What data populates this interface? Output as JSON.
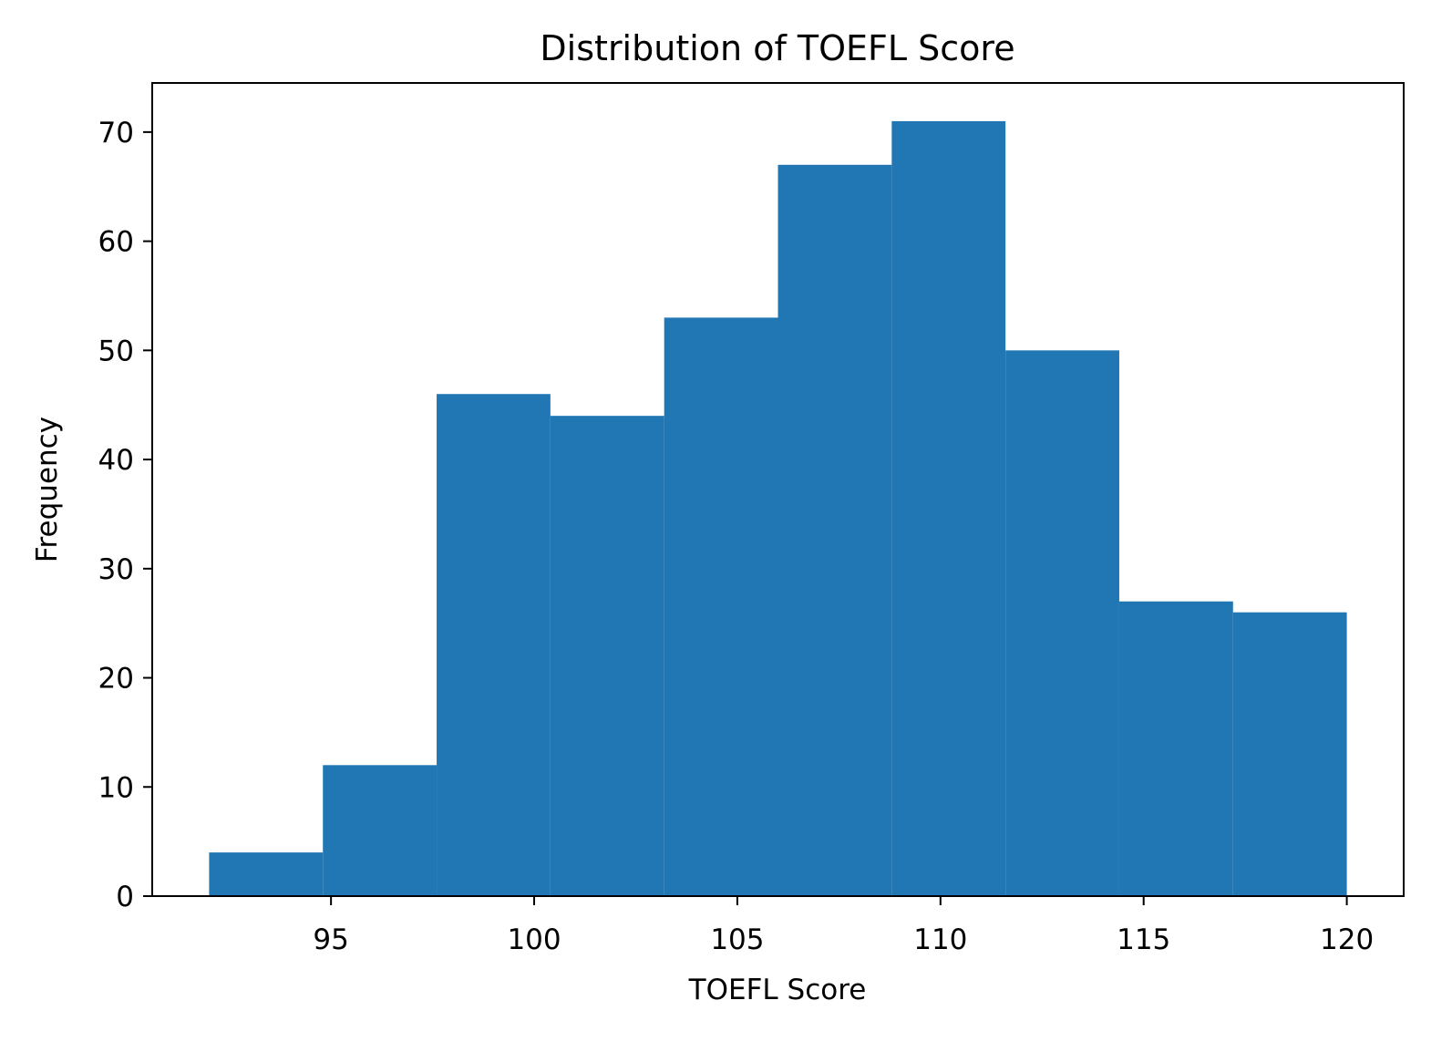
{
  "chart_data": {
    "type": "bar",
    "title": "Distribution of TOEFL Score",
    "xlabel": "TOEFL Score",
    "ylabel": "Frequency",
    "bin_edges": [
      92,
      94.8,
      97.6,
      100.4,
      103.2,
      106,
      108.8,
      111.6,
      114.4,
      117.2,
      120
    ],
    "values": [
      4,
      12,
      46,
      44,
      53,
      67,
      71,
      50,
      27,
      26
    ],
    "xlim": [
      90.6,
      121.4
    ],
    "ylim": [
      0,
      74.5
    ],
    "xticks": [
      95,
      100,
      105,
      110,
      115,
      120
    ],
    "yticks": [
      0,
      10,
      20,
      30,
      40,
      50,
      60,
      70
    ],
    "bar_color": "#2077b4",
    "grid": false,
    "legend": "none"
  }
}
